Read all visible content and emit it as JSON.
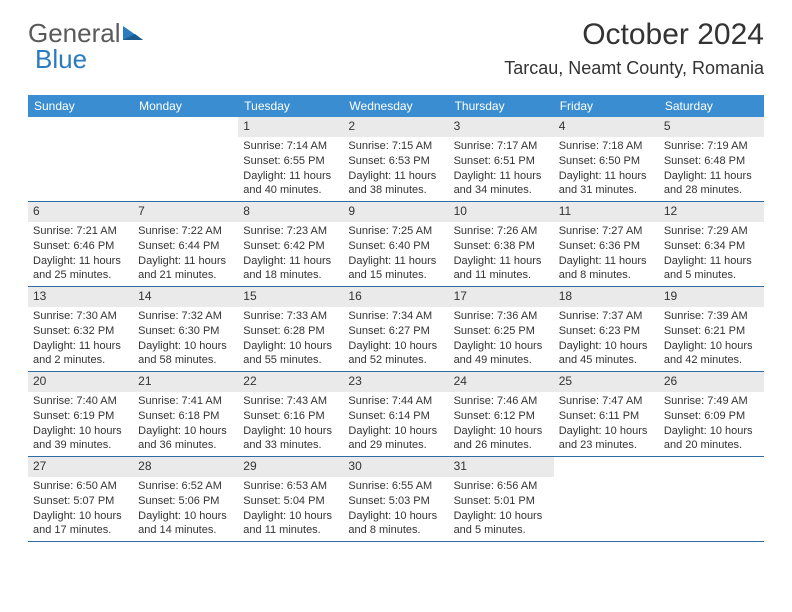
{
  "logo": {
    "text1": "General",
    "text2": "Blue"
  },
  "title": "October 2024",
  "location": "Tarcau, Neamt County, Romania",
  "colors": {
    "header_bg": "#3a8dd0",
    "grid_border": "#2e6da4",
    "daynum_bg": "#eaeaea",
    "logo_blue": "#2b7bbf"
  },
  "weekdays": [
    "Sunday",
    "Monday",
    "Tuesday",
    "Wednesday",
    "Thursday",
    "Friday",
    "Saturday"
  ],
  "weeks": [
    [
      null,
      null,
      {
        "n": "1",
        "sr": "Sunrise: 7:14 AM",
        "ss": "Sunset: 6:55 PM",
        "dl": "Daylight: 11 hours and 40 minutes."
      },
      {
        "n": "2",
        "sr": "Sunrise: 7:15 AM",
        "ss": "Sunset: 6:53 PM",
        "dl": "Daylight: 11 hours and 38 minutes."
      },
      {
        "n": "3",
        "sr": "Sunrise: 7:17 AM",
        "ss": "Sunset: 6:51 PM",
        "dl": "Daylight: 11 hours and 34 minutes."
      },
      {
        "n": "4",
        "sr": "Sunrise: 7:18 AM",
        "ss": "Sunset: 6:50 PM",
        "dl": "Daylight: 11 hours and 31 minutes."
      },
      {
        "n": "5",
        "sr": "Sunrise: 7:19 AM",
        "ss": "Sunset: 6:48 PM",
        "dl": "Daylight: 11 hours and 28 minutes."
      }
    ],
    [
      {
        "n": "6",
        "sr": "Sunrise: 7:21 AM",
        "ss": "Sunset: 6:46 PM",
        "dl": "Daylight: 11 hours and 25 minutes."
      },
      {
        "n": "7",
        "sr": "Sunrise: 7:22 AM",
        "ss": "Sunset: 6:44 PM",
        "dl": "Daylight: 11 hours and 21 minutes."
      },
      {
        "n": "8",
        "sr": "Sunrise: 7:23 AM",
        "ss": "Sunset: 6:42 PM",
        "dl": "Daylight: 11 hours and 18 minutes."
      },
      {
        "n": "9",
        "sr": "Sunrise: 7:25 AM",
        "ss": "Sunset: 6:40 PM",
        "dl": "Daylight: 11 hours and 15 minutes."
      },
      {
        "n": "10",
        "sr": "Sunrise: 7:26 AM",
        "ss": "Sunset: 6:38 PM",
        "dl": "Daylight: 11 hours and 11 minutes."
      },
      {
        "n": "11",
        "sr": "Sunrise: 7:27 AM",
        "ss": "Sunset: 6:36 PM",
        "dl": "Daylight: 11 hours and 8 minutes."
      },
      {
        "n": "12",
        "sr": "Sunrise: 7:29 AM",
        "ss": "Sunset: 6:34 PM",
        "dl": "Daylight: 11 hours and 5 minutes."
      }
    ],
    [
      {
        "n": "13",
        "sr": "Sunrise: 7:30 AM",
        "ss": "Sunset: 6:32 PM",
        "dl": "Daylight: 11 hours and 2 minutes."
      },
      {
        "n": "14",
        "sr": "Sunrise: 7:32 AM",
        "ss": "Sunset: 6:30 PM",
        "dl": "Daylight: 10 hours and 58 minutes."
      },
      {
        "n": "15",
        "sr": "Sunrise: 7:33 AM",
        "ss": "Sunset: 6:28 PM",
        "dl": "Daylight: 10 hours and 55 minutes."
      },
      {
        "n": "16",
        "sr": "Sunrise: 7:34 AM",
        "ss": "Sunset: 6:27 PM",
        "dl": "Daylight: 10 hours and 52 minutes."
      },
      {
        "n": "17",
        "sr": "Sunrise: 7:36 AM",
        "ss": "Sunset: 6:25 PM",
        "dl": "Daylight: 10 hours and 49 minutes."
      },
      {
        "n": "18",
        "sr": "Sunrise: 7:37 AM",
        "ss": "Sunset: 6:23 PM",
        "dl": "Daylight: 10 hours and 45 minutes."
      },
      {
        "n": "19",
        "sr": "Sunrise: 7:39 AM",
        "ss": "Sunset: 6:21 PM",
        "dl": "Daylight: 10 hours and 42 minutes."
      }
    ],
    [
      {
        "n": "20",
        "sr": "Sunrise: 7:40 AM",
        "ss": "Sunset: 6:19 PM",
        "dl": "Daylight: 10 hours and 39 minutes."
      },
      {
        "n": "21",
        "sr": "Sunrise: 7:41 AM",
        "ss": "Sunset: 6:18 PM",
        "dl": "Daylight: 10 hours and 36 minutes."
      },
      {
        "n": "22",
        "sr": "Sunrise: 7:43 AM",
        "ss": "Sunset: 6:16 PM",
        "dl": "Daylight: 10 hours and 33 minutes."
      },
      {
        "n": "23",
        "sr": "Sunrise: 7:44 AM",
        "ss": "Sunset: 6:14 PM",
        "dl": "Daylight: 10 hours and 29 minutes."
      },
      {
        "n": "24",
        "sr": "Sunrise: 7:46 AM",
        "ss": "Sunset: 6:12 PM",
        "dl": "Daylight: 10 hours and 26 minutes."
      },
      {
        "n": "25",
        "sr": "Sunrise: 7:47 AM",
        "ss": "Sunset: 6:11 PM",
        "dl": "Daylight: 10 hours and 23 minutes."
      },
      {
        "n": "26",
        "sr": "Sunrise: 7:49 AM",
        "ss": "Sunset: 6:09 PM",
        "dl": "Daylight: 10 hours and 20 minutes."
      }
    ],
    [
      {
        "n": "27",
        "sr": "Sunrise: 6:50 AM",
        "ss": "Sunset: 5:07 PM",
        "dl": "Daylight: 10 hours and 17 minutes."
      },
      {
        "n": "28",
        "sr": "Sunrise: 6:52 AM",
        "ss": "Sunset: 5:06 PM",
        "dl": "Daylight: 10 hours and 14 minutes."
      },
      {
        "n": "29",
        "sr": "Sunrise: 6:53 AM",
        "ss": "Sunset: 5:04 PM",
        "dl": "Daylight: 10 hours and 11 minutes."
      },
      {
        "n": "30",
        "sr": "Sunrise: 6:55 AM",
        "ss": "Sunset: 5:03 PM",
        "dl": "Daylight: 10 hours and 8 minutes."
      },
      {
        "n": "31",
        "sr": "Sunrise: 6:56 AM",
        "ss": "Sunset: 5:01 PM",
        "dl": "Daylight: 10 hours and 5 minutes."
      },
      null,
      null
    ]
  ]
}
